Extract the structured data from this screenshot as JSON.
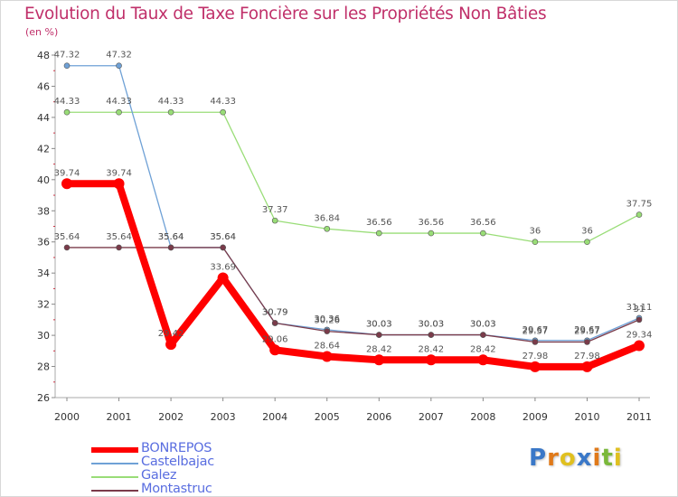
{
  "chart_data": {
    "type": "line",
    "title": "Evolution du Taux de Taxe Foncière sur les Propriétés Non Bâties",
    "ylabel": "(en %)",
    "xlabel": "",
    "categories": [
      "2000",
      "2001",
      "2002",
      "2003",
      "2004",
      "2005",
      "2006",
      "2007",
      "2008",
      "2009",
      "2010",
      "2011"
    ],
    "ylim": [
      26,
      48
    ],
    "yticks": [
      26,
      28,
      30,
      32,
      34,
      36,
      38,
      40,
      42,
      44,
      46,
      48
    ],
    "series": [
      {
        "name": "BONREPOS",
        "color": "#ff0000",
        "values": [
          39.74,
          39.74,
          29.42,
          33.69,
          29.06,
          28.64,
          28.42,
          28.42,
          28.42,
          27.98,
          27.98,
          29.34
        ]
      },
      {
        "name": "Castelbajac",
        "color": "#6fa1d6",
        "values": [
          47.32,
          47.32,
          35.64,
          35.64,
          30.79,
          30.36,
          30.03,
          30.03,
          30.03,
          29.67,
          29.67,
          31.11
        ]
      },
      {
        "name": "Galez",
        "color": "#99dd77",
        "values": [
          44.33,
          44.33,
          44.33,
          44.33,
          37.37,
          36.84,
          36.56,
          36.56,
          36.56,
          36,
          36,
          37.75
        ]
      },
      {
        "name": "Montastruc",
        "color": "#7a3b4a",
        "values": [
          35.64,
          35.64,
          35.64,
          35.64,
          30.79,
          30.26,
          30.03,
          30.03,
          30.03,
          29.57,
          29.57,
          31
        ]
      }
    ],
    "display_labels": [
      [
        "39.74",
        "39.74",
        "29.42",
        "33.69",
        "29.06",
        "28.64",
        "28.42",
        "28.42",
        "28.42",
        "27.98",
        "27.98",
        "29.34"
      ],
      [
        "47.32",
        "47.32",
        "35.64",
        "35.64",
        "30.79",
        "30.36",
        "30.03",
        "30.03",
        "30.03",
        "29.67",
        "29.67",
        "31.11"
      ],
      [
        "44.33",
        "44.33",
        "44.33",
        "44.33",
        "37.37",
        "36.84",
        "36.56",
        "36.56",
        "36.56",
        "36",
        "36",
        "37.75"
      ],
      [
        "35.64",
        "35.64",
        "35.64",
        "35.64",
        "30.79",
        "30.26",
        "30.03",
        "30.03",
        "30.03",
        "29.57",
        "29.57",
        "31"
      ]
    ],
    "grid": false,
    "legend": "bottom-left"
  },
  "logo": {
    "text": "Proxiti",
    "letters": [
      "P",
      "r",
      "o",
      "x",
      "i",
      "t",
      "i"
    ],
    "colors": [
      "#3a78c8",
      "#e07a1a",
      "#e0c020",
      "#3a78c8",
      "#e07a1a",
      "#7ab83a",
      "#e0c020"
    ]
  }
}
